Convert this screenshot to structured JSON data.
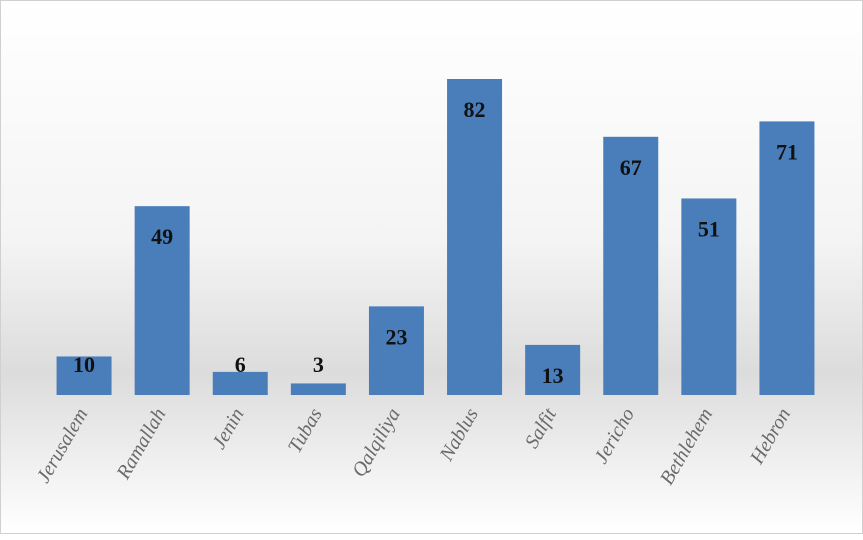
{
  "chart_data": {
    "type": "bar",
    "categories": [
      "Jerusalem",
      "Ramallah",
      "Jenin",
      "Tubas",
      "Qalqiliya",
      "Nablus",
      "Salfit",
      "Jericho",
      "Bethlehem",
      "Hebron"
    ],
    "values": [
      10,
      49,
      6,
      3,
      23,
      82,
      13,
      67,
      51,
      71
    ],
    "color": "#4a7ebb"
  }
}
